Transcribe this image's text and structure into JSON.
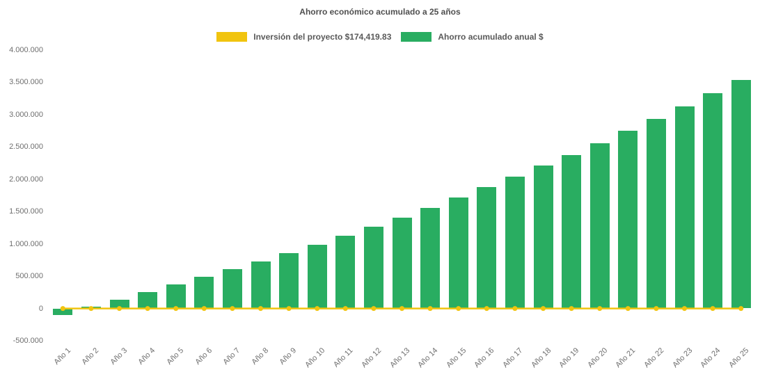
{
  "chart_data": {
    "type": "bar",
    "title": "Ahorro económico acumulado a 25 años",
    "xlabel": "",
    "ylabel": "",
    "grid": false,
    "legend_position": "top",
    "categories": [
      "Año 1",
      "Año 2",
      "Año 3",
      "Año 4",
      "Año 5",
      "Año 6",
      "Año 7",
      "Año 8",
      "Año 9",
      "Año 10",
      "Año 11",
      "Año 12",
      "Año 13",
      "Año 14",
      "Año 15",
      "Año 16",
      "Año 17",
      "Año 18",
      "Año 19",
      "Año 20",
      "Año 21",
      "Año 22",
      "Año 23",
      "Año 24",
      "Año 25"
    ],
    "series": [
      {
        "name": "Ahorro acumulado anual $",
        "type": "bar",
        "color": "#29ad61",
        "values": [
          -100000,
          30000,
          140000,
          250000,
          370000,
          490000,
          610000,
          730000,
          860000,
          990000,
          1130000,
          1270000,
          1410000,
          1560000,
          1720000,
          1880000,
          2040000,
          2210000,
          2380000,
          2560000,
          2750000,
          2940000,
          3130000,
          3330000,
          3540000
        ]
      },
      {
        "name": "Inversión del proyecto $174,419.83",
        "type": "line",
        "color": "#f1c40f",
        "values_constant": 0
      }
    ],
    "legend": [
      {
        "label": "Inversión del proyecto $174,419.83",
        "color": "#f1c40f"
      },
      {
        "label": "Ahorro acumulado anual $",
        "color": "#29ad61"
      }
    ],
    "ylim": [
      -500000,
      4000000
    ],
    "ytick_step": 500000,
    "ytick_labels": [
      "4.000.000",
      "3.500.000",
      "3.000.000",
      "2.500.000",
      "2.000.000",
      "1.500.000",
      "1.000.000",
      "500.000",
      "0",
      "-500.000"
    ]
  }
}
